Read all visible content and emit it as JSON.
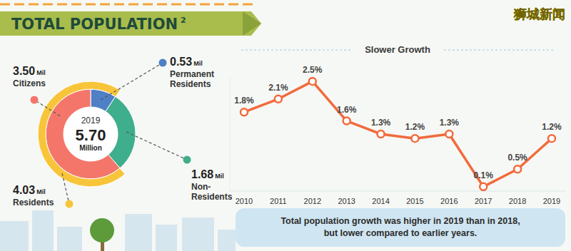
{
  "title": "TOTAL POPULATION",
  "title_note": "2",
  "watermark": "狮城新闻",
  "chart_data": [
    {
      "type": "donut",
      "center_title": "2019",
      "total": 5.7,
      "total_label": "5.70",
      "total_unit": "Million",
      "unit": "Mil",
      "categories": [
        "Permanent Residents",
        "Non-Residents",
        "Citizens"
      ],
      "values": [
        0.53,
        1.68,
        3.5
      ],
      "value_labels": [
        "0.53",
        "1.68",
        "3.50"
      ],
      "colors": [
        "#4f7fc6",
        "#3fae8c",
        "#f4766b"
      ],
      "data_labels": true,
      "outer": {
        "name": "Residents",
        "value": 4.03,
        "value_label": "4.03",
        "color": "#f8c53a"
      }
    },
    {
      "type": "line",
      "title": "Slower Growth",
      "categories": [
        "2010",
        "2011",
        "2012",
        "2013",
        "2014",
        "2015",
        "2016",
        "2017",
        "2018",
        "2019"
      ],
      "values": [
        1.8,
        2.1,
        2.5,
        1.6,
        1.3,
        1.2,
        1.3,
        0.1,
        0.5,
        1.2
      ],
      "value_labels": [
        "1.8%",
        "2.1%",
        "2.5%",
        "1.6%",
        "1.3%",
        "1.2%",
        "1.3%",
        "0.1%",
        "0.5%",
        "1.2%"
      ],
      "color": "#f26a3c",
      "marker": "circle",
      "data_labels": true,
      "ylim": [
        0,
        2.6
      ],
      "tick_labels": "x",
      "grid": false,
      "annotation": [
        "Total population growth was higher in 2019 than in 2018,",
        "but lower compared to earlier years."
      ]
    }
  ]
}
